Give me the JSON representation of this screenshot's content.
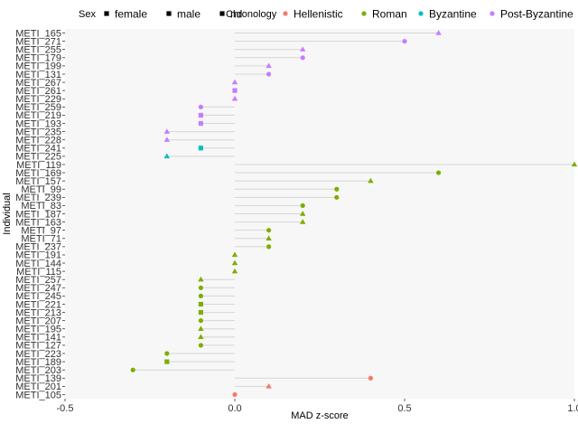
{
  "chart_data": {
    "type": "scatter",
    "subtype": "lollipop",
    "title": "",
    "xlabel": "MAD z-score",
    "ylabel": "Individual",
    "xlim": [
      -0.5,
      1.0
    ],
    "xticks": [
      "-0.5",
      "0.0",
      "0.5",
      "1.0"
    ],
    "xtick_values": [
      -0.5,
      0.0,
      0.5,
      1.0
    ],
    "grid": false,
    "panel_background": "#f7f7f7",
    "legend_position": "top",
    "legend": {
      "sex": {
        "title": "Sex",
        "entries": [
          {
            "label": "female",
            "shape": "circle"
          },
          {
            "label": "male",
            "shape": "triangle"
          },
          {
            "label": "nd",
            "shape": "square"
          }
        ]
      },
      "chronology": {
        "title": "Chronology",
        "entries": [
          {
            "label": "Hellenistic",
            "color": "#F8766D"
          },
          {
            "label": "Roman",
            "color": "#7CAE00"
          },
          {
            "label": "Byzantine",
            "color": "#00BFC4"
          },
          {
            "label": "Post-Byzantine",
            "color": "#C77CFF"
          }
        ]
      }
    },
    "points": [
      {
        "label": "METI_165",
        "value": 0.6,
        "sex": "male",
        "chronology": "Post-Byzantine"
      },
      {
        "label": "METI_271",
        "value": 0.5,
        "sex": "female",
        "chronology": "Post-Byzantine"
      },
      {
        "label": "METI_255",
        "value": 0.2,
        "sex": "male",
        "chronology": "Post-Byzantine"
      },
      {
        "label": "METI_179",
        "value": 0.2,
        "sex": "female",
        "chronology": "Post-Byzantine"
      },
      {
        "label": "METI_199",
        "value": 0.1,
        "sex": "male",
        "chronology": "Post-Byzantine"
      },
      {
        "label": "METI_131",
        "value": 0.1,
        "sex": "female",
        "chronology": "Post-Byzantine"
      },
      {
        "label": "METI_267",
        "value": 0.0,
        "sex": "male",
        "chronology": "Post-Byzantine"
      },
      {
        "label": "METI_261",
        "value": 0.0,
        "sex": "nd",
        "chronology": "Post-Byzantine"
      },
      {
        "label": "METI_229",
        "value": 0.0,
        "sex": "male",
        "chronology": "Post-Byzantine"
      },
      {
        "label": "METI_259",
        "value": -0.1,
        "sex": "female",
        "chronology": "Post-Byzantine"
      },
      {
        "label": "METI_219",
        "value": -0.1,
        "sex": "nd",
        "chronology": "Post-Byzantine"
      },
      {
        "label": "METI_193",
        "value": -0.1,
        "sex": "nd",
        "chronology": "Post-Byzantine"
      },
      {
        "label": "METI_235",
        "value": -0.2,
        "sex": "male",
        "chronology": "Post-Byzantine"
      },
      {
        "label": "METI_228",
        "value": -0.2,
        "sex": "male",
        "chronology": "Post-Byzantine"
      },
      {
        "label": "METI_241",
        "value": -0.1,
        "sex": "nd",
        "chronology": "Byzantine"
      },
      {
        "label": "METI_225",
        "value": -0.2,
        "sex": "male",
        "chronology": "Byzantine"
      },
      {
        "label": "METI_119",
        "value": 1.0,
        "sex": "male",
        "chronology": "Roman"
      },
      {
        "label": "METI_169",
        "value": 0.6,
        "sex": "female",
        "chronology": "Roman"
      },
      {
        "label": "METI_157",
        "value": 0.4,
        "sex": "male",
        "chronology": "Roman"
      },
      {
        "label": "METI_99",
        "value": 0.3,
        "sex": "female",
        "chronology": "Roman"
      },
      {
        "label": "METI_239",
        "value": 0.3,
        "sex": "female",
        "chronology": "Roman"
      },
      {
        "label": "METI_83",
        "value": 0.2,
        "sex": "female",
        "chronology": "Roman"
      },
      {
        "label": "METI_187",
        "value": 0.2,
        "sex": "male",
        "chronology": "Roman"
      },
      {
        "label": "METI_163",
        "value": 0.2,
        "sex": "male",
        "chronology": "Roman"
      },
      {
        "label": "METI_97",
        "value": 0.1,
        "sex": "female",
        "chronology": "Roman"
      },
      {
        "label": "METI_71",
        "value": 0.1,
        "sex": "male",
        "chronology": "Roman"
      },
      {
        "label": "METI_237",
        "value": 0.1,
        "sex": "female",
        "chronology": "Roman"
      },
      {
        "label": "METI_191",
        "value": 0.0,
        "sex": "male",
        "chronology": "Roman"
      },
      {
        "label": "METI_144",
        "value": 0.0,
        "sex": "male",
        "chronology": "Roman"
      },
      {
        "label": "METI_115",
        "value": 0.0,
        "sex": "male",
        "chronology": "Roman"
      },
      {
        "label": "METI_257",
        "value": -0.1,
        "sex": "male",
        "chronology": "Roman"
      },
      {
        "label": "METI_247",
        "value": -0.1,
        "sex": "female",
        "chronology": "Roman"
      },
      {
        "label": "METI_245",
        "value": -0.1,
        "sex": "female",
        "chronology": "Roman"
      },
      {
        "label": "METI_221",
        "value": -0.1,
        "sex": "nd",
        "chronology": "Roman"
      },
      {
        "label": "METI_213",
        "value": -0.1,
        "sex": "nd",
        "chronology": "Roman"
      },
      {
        "label": "METI_207",
        "value": -0.1,
        "sex": "female",
        "chronology": "Roman"
      },
      {
        "label": "METI_195",
        "value": -0.1,
        "sex": "male",
        "chronology": "Roman"
      },
      {
        "label": "METI_141",
        "value": -0.1,
        "sex": "male",
        "chronology": "Roman"
      },
      {
        "label": "METI_127",
        "value": -0.1,
        "sex": "female",
        "chronology": "Roman"
      },
      {
        "label": "METI_223",
        "value": -0.2,
        "sex": "female",
        "chronology": "Roman"
      },
      {
        "label": "METI_189",
        "value": -0.2,
        "sex": "nd",
        "chronology": "Roman"
      },
      {
        "label": "METI_203",
        "value": -0.3,
        "sex": "female",
        "chronology": "Roman"
      },
      {
        "label": "METI_139",
        "value": 0.4,
        "sex": "female",
        "chronology": "Hellenistic"
      },
      {
        "label": "METI_201",
        "value": 0.1,
        "sex": "male",
        "chronology": "Hellenistic"
      },
      {
        "label": "METI_105",
        "value": 0.0,
        "sex": "female",
        "chronology": "Hellenistic"
      }
    ]
  }
}
